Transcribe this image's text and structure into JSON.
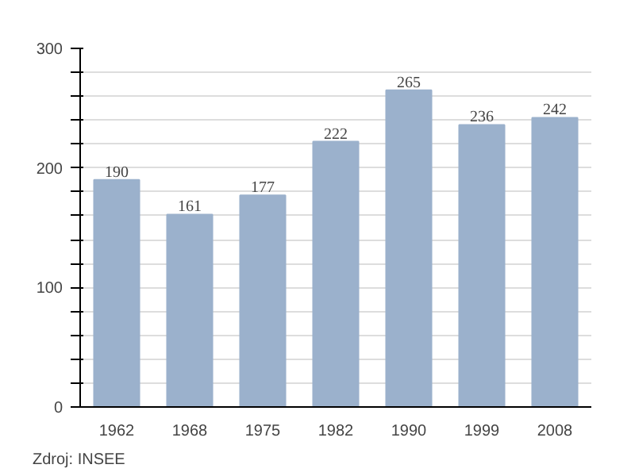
{
  "chart_data": {
    "type": "bar",
    "categories": [
      "1962",
      "1968",
      "1975",
      "1982",
      "1990",
      "1999",
      "2008"
    ],
    "values": [
      190,
      161,
      177,
      222,
      265,
      236,
      242
    ],
    "color": "#9bb1cc",
    "data_labels": true,
    "grid": "y",
    "ylim": [
      0,
      300
    ],
    "yticks": [
      0,
      {
        "value": 20,
        "label": null
      },
      {
        "value": 40,
        "label": null
      },
      {
        "value": 60,
        "label": null
      },
      {
        "value": 80,
        "label": null
      },
      100,
      {
        "value": 120,
        "label": null
      },
      {
        "value": 140,
        "label": null
      },
      {
        "value": 160,
        "label": null
      },
      {
        "value": 180,
        "label": null
      },
      200,
      {
        "value": 220,
        "label": null
      },
      {
        "value": 240,
        "label": null
      },
      {
        "value": 260,
        "label": null
      },
      {
        "value": 280,
        "label": null
      },
      300
    ],
    "annotations": [
      "Zdroj: INSEE"
    ]
  }
}
